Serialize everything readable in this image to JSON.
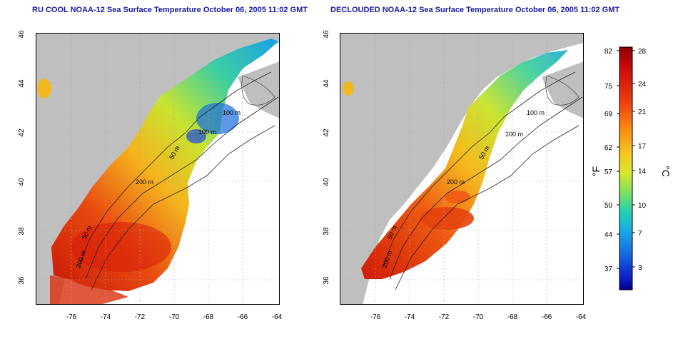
{
  "panels": [
    {
      "title": "RU COOL NOAA-12 Sea Surface Temperature October 06, 2005 11:02 GMT"
    },
    {
      "title": "DECLOUDED NOAA-12 Sea Surface Temperature October 06, 2005 11:02 GMT"
    }
  ],
  "axes": {
    "lon_ticks": [
      "-76",
      "-74",
      "-72",
      "-70",
      "-68",
      "-66",
      "-64"
    ],
    "lat_ticks": [
      "46",
      "44",
      "42",
      "40",
      "38",
      "36"
    ]
  },
  "contour_labels": [
    "100 m",
    "100 m",
    "50 m",
    "200 m",
    "50 m",
    "200 m"
  ],
  "colorbar": {
    "fahrenheit_ticks": [
      "82",
      "75",
      "69",
      "62",
      "57",
      "50",
      "44",
      "37"
    ],
    "celsius_ticks": [
      "28",
      "24",
      "21",
      "17",
      "14",
      "10",
      "7",
      "3"
    ],
    "fahrenheit_unit": "°F",
    "celsius_unit": "°C"
  },
  "colors": {
    "land": "#bfbfbf",
    "title": "#1a1aa6",
    "grid": "#aaaaaa"
  }
}
